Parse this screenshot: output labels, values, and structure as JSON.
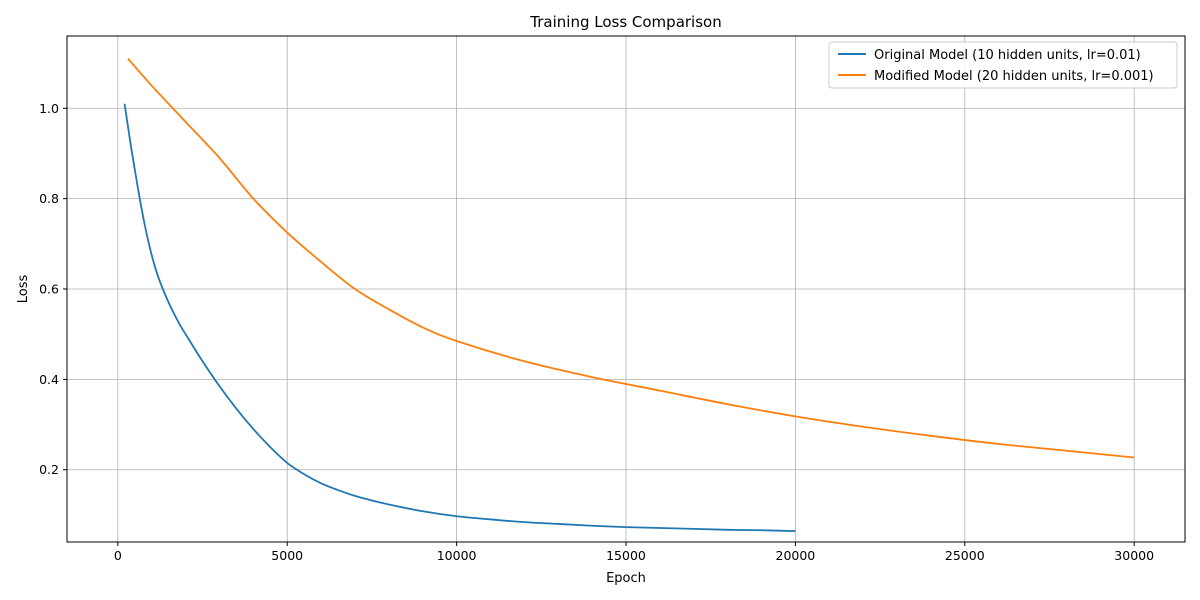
{
  "chart_data": {
    "type": "line",
    "title": "Training Loss Comparison",
    "xlabel": "Epoch",
    "ylabel": "Loss",
    "xlim": [
      -1500,
      31500
    ],
    "ylim": [
      0.04,
      1.16
    ],
    "xticks": [
      0,
      5000,
      10000,
      15000,
      20000,
      25000,
      30000
    ],
    "xtick_labels": [
      "0",
      "5000",
      "10000",
      "15000",
      "20000",
      "25000",
      "30000"
    ],
    "yticks": [
      0.2,
      0.4,
      0.6,
      0.8,
      1.0
    ],
    "ytick_labels": [
      "0.2",
      "0.4",
      "0.6",
      "0.8",
      "1.0"
    ],
    "grid": true,
    "legend_position": "top-right",
    "series": [
      {
        "name": "Original Model (10 hidden units, lr=0.01)",
        "color": "#1f77b4",
        "x": [
          200,
          400,
          600,
          800,
          1000,
          1200,
          1500,
          1800,
          2000,
          2500,
          3000,
          3500,
          4000,
          4500,
          5000,
          5500,
          6000,
          6500,
          7000,
          7500,
          8000,
          9000,
          10000,
          11000,
          12000,
          13000,
          14000,
          15000,
          16000,
          17000,
          18000,
          19000,
          20000
        ],
        "y": [
          1.01,
          0.91,
          0.82,
          0.74,
          0.675,
          0.625,
          0.57,
          0.525,
          0.5,
          0.44,
          0.385,
          0.335,
          0.29,
          0.25,
          0.215,
          0.19,
          0.17,
          0.155,
          0.142,
          0.132,
          0.123,
          0.108,
          0.097,
          0.09,
          0.084,
          0.08,
          0.076,
          0.073,
          0.071,
          0.069,
          0.067,
          0.066,
          0.064
        ]
      },
      {
        "name": "Modified Model (20 hidden units, lr=0.001)",
        "color": "#ff7f0e",
        "x": [
          300,
          1000,
          2000,
          3000,
          4000,
          5000,
          6000,
          7000,
          8000,
          9000,
          10000,
          12000,
          14000,
          16000,
          18000,
          20000,
          22000,
          24000,
          26000,
          28000,
          30000
        ],
        "y": [
          1.11,
          1.05,
          0.97,
          0.89,
          0.8,
          0.725,
          0.66,
          0.6,
          0.555,
          0.515,
          0.485,
          0.44,
          0.405,
          0.375,
          0.345,
          0.318,
          0.295,
          0.275,
          0.257,
          0.242,
          0.227
        ]
      }
    ]
  }
}
